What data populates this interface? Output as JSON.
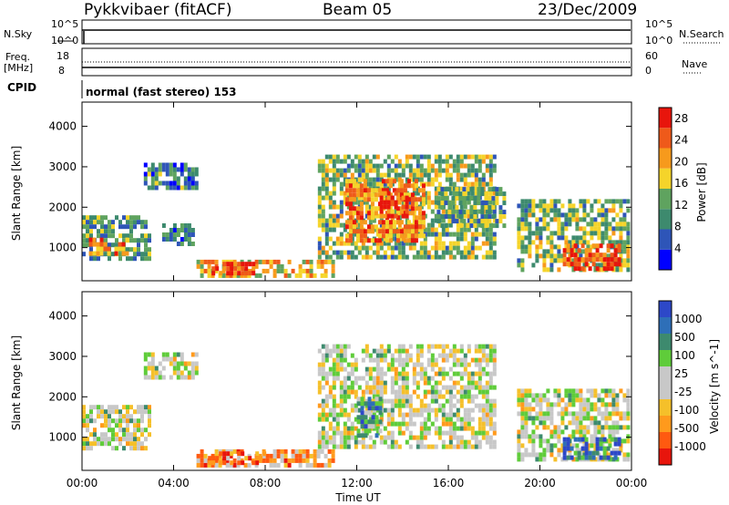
{
  "header": {
    "station": "Pykkvibaer (fitACF)",
    "beam": "Beam 05",
    "date": "23/Dec/2009"
  },
  "noise_panel": {
    "left_label": "N.Sky",
    "right_label": "N.Search",
    "left_ticks": [
      "10^5",
      "10^0"
    ],
    "right_ticks": [
      "10^5",
      "10^0"
    ]
  },
  "freq_panel": {
    "left_label_line1": "Freq.",
    "left_label_line2": "[MHz]",
    "right_label": "Nave",
    "left_ticks": [
      "18",
      "8"
    ],
    "right_ticks": [
      "60",
      "0"
    ]
  },
  "cpid": {
    "label": "CPID",
    "mode": "normal (fast stereo) 153"
  },
  "colors": {
    "power_scale": [
      "#0000ff",
      "#2e55b8",
      "#3d8a6e",
      "#5fa35f",
      "#f5d42a",
      "#f79a1c",
      "#ef5a1a",
      "#e8150c"
    ],
    "velocity_scale": [
      "#e8150c",
      "#ff5a10",
      "#ff9a1c",
      "#f5c02a",
      "#c8c8c8",
      "#c8c8c8",
      "#5fcc3a",
      "#3d8a6e",
      "#2e6fb8",
      "#2d48c8"
    ]
  },
  "chart_data": [
    {
      "type": "heatmap",
      "title": "",
      "xlabel": "",
      "ylabel": "Slant Range [km]",
      "x_ticks": [
        "00:00",
        "04:00",
        "08:00",
        "12:00",
        "16:00",
        "20:00",
        "00:00"
      ],
      "y_ticks": [
        1000,
        2000,
        3000,
        4000
      ],
      "ylim": [
        180,
        4600
      ],
      "colorbar": {
        "label": "Power [dB]",
        "ticks": [
          4,
          8,
          12,
          16,
          20,
          24,
          28
        ],
        "range": [
          0,
          30
        ]
      },
      "regions": [
        {
          "t0": 0.0,
          "t1": 3.0,
          "r0": 700,
          "r1": 1800,
          "level": 0.35
        },
        {
          "t0": 0.3,
          "t1": 2.0,
          "r0": 850,
          "r1": 1250,
          "level": 0.75
        },
        {
          "t0": 2.7,
          "t1": 5.0,
          "r0": 2500,
          "r1": 3100,
          "level": 0.3
        },
        {
          "t0": 3.5,
          "t1": 4.8,
          "r0": 1100,
          "r1": 1600,
          "level": 0.25
        },
        {
          "t0": 5.0,
          "t1": 11.0,
          "r0": 350,
          "r1": 700,
          "level": 0.6
        },
        {
          "t0": 5.5,
          "t1": 7.5,
          "r0": 380,
          "r1": 650,
          "level": 0.9
        },
        {
          "t0": 10.3,
          "t1": 18.0,
          "r0": 800,
          "r1": 3300,
          "level": 0.45
        },
        {
          "t0": 11.5,
          "t1": 15.0,
          "r0": 1200,
          "r1": 2700,
          "level": 0.75
        },
        {
          "t0": 13.0,
          "t1": 14.2,
          "r0": 1800,
          "r1": 2400,
          "level": 0.85
        },
        {
          "t0": 15.5,
          "t1": 18.5,
          "r0": 1500,
          "r1": 2500,
          "level": 0.4
        },
        {
          "t0": 19.0,
          "t1": 23.8,
          "r0": 400,
          "r1": 2200,
          "level": 0.45
        },
        {
          "t0": 21.0,
          "t1": 23.5,
          "r0": 450,
          "r1": 1100,
          "level": 0.85
        }
      ]
    },
    {
      "type": "heatmap",
      "title": "",
      "xlabel": "Time UT",
      "ylabel": "Slant Range [km]",
      "x_ticks": [
        "00:00",
        "04:00",
        "08:00",
        "12:00",
        "16:00",
        "20:00",
        "00:00"
      ],
      "y_ticks": [
        1000,
        2000,
        3000,
        4000
      ],
      "ylim": [
        180,
        4600
      ],
      "colorbar": {
        "label": "Velocity [m s^-1]",
        "ticks": [
          1000,
          500,
          100,
          25,
          -25,
          -100,
          -500,
          -1000
        ]
      },
      "regions": [
        {
          "t0": 0.0,
          "t1": 3.0,
          "r0": 700,
          "r1": 1800,
          "level": 0.5
        },
        {
          "t0": 2.7,
          "t1": 5.0,
          "r0": 2500,
          "r1": 3100,
          "level": 0.5
        },
        {
          "t0": 5.0,
          "t1": 11.0,
          "r0": 350,
          "r1": 700,
          "level": 0.3
        },
        {
          "t0": 5.5,
          "t1": 8.0,
          "r0": 380,
          "r1": 650,
          "level": 0.2
        },
        {
          "t0": 10.3,
          "t1": 18.0,
          "r0": 800,
          "r1": 3300,
          "level": 0.5
        },
        {
          "t0": 12.0,
          "t1": 13.0,
          "r0": 1000,
          "r1": 2000,
          "level": 0.7
        },
        {
          "t0": 19.0,
          "t1": 23.8,
          "r0": 400,
          "r1": 2200,
          "level": 0.5
        },
        {
          "t0": 21.0,
          "t1": 23.5,
          "r0": 450,
          "r1": 1000,
          "level": 0.9
        }
      ]
    }
  ]
}
